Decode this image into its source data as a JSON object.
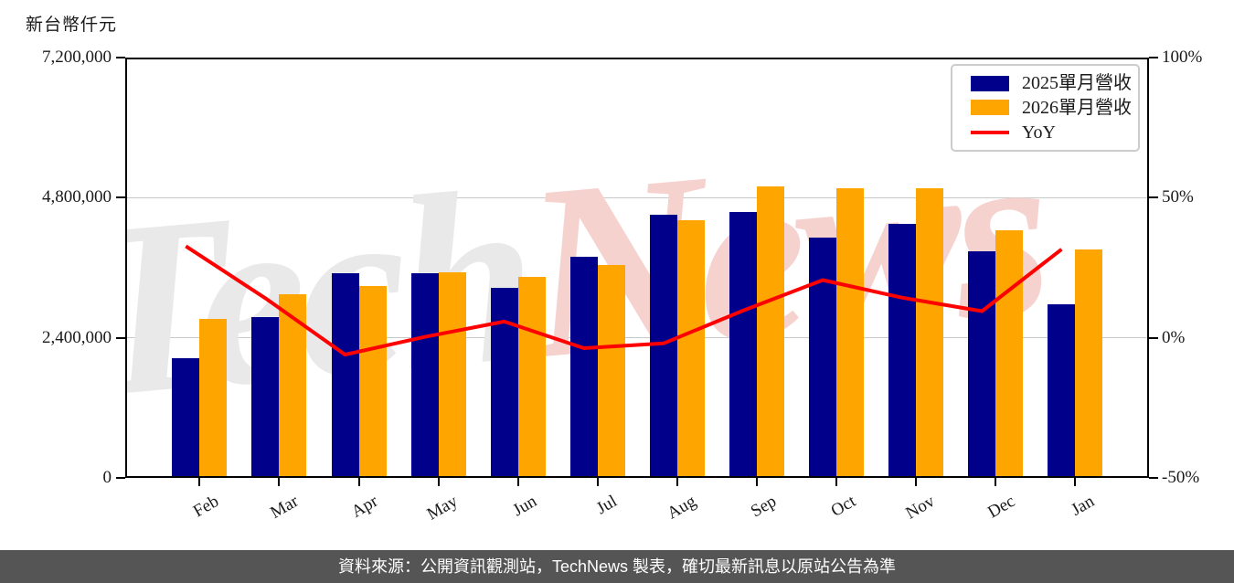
{
  "title": "新台幣仟元",
  "chart_data": {
    "type": "bar",
    "categories": [
      "Feb",
      "Mar",
      "Apr",
      "May",
      "Jun",
      "Jul",
      "Aug",
      "Sep",
      "Oct",
      "Nov",
      "Dec",
      "Jan"
    ],
    "series": [
      {
        "name": "2025單月營收",
        "color": "#00008B",
        "values": [
          2050000,
          2760000,
          3500000,
          3510000,
          3260000,
          3790000,
          4510000,
          4550000,
          4120000,
          4350000,
          3880000,
          2970000
        ]
      },
      {
        "name": "2026單月營收",
        "color": "#FFA500",
        "values": [
          2720000,
          3150000,
          3290000,
          3520000,
          3450000,
          3650000,
          4420000,
          4990000,
          4970000,
          4970000,
          4250000,
          3910000
        ]
      }
    ],
    "line_series": {
      "name": "YoY",
      "color": "#FF0000",
      "values_pct": [
        32.7,
        14.1,
        -6.0,
        0.3,
        5.8,
        -3.7,
        -2.0,
        9.7,
        20.6,
        14.3,
        9.5,
        31.6
      ]
    },
    "left_axis": {
      "label": "新台幣仟元",
      "tick_labels": [
        "7,200,000",
        "4,800,000",
        "2,400,000",
        "0"
      ],
      "min": 0,
      "max": 7200000
    },
    "right_axis": {
      "tick_labels": [
        "100%",
        "50%",
        "0%",
        "-50%"
      ],
      "min": -50,
      "max": 100
    },
    "legend_position": "upper right",
    "grid": "horizontal"
  },
  "watermark": {
    "gray_text": "Tech",
    "pink_text": "News"
  },
  "footer": {
    "text": "資料來源：公開資訊觀測站，TechNews 製表，確切最新訊息以原站公告為準"
  },
  "colors": {
    "bar_2025": "#00008B",
    "bar_2026": "#FFA500",
    "yoy_line": "#FF0000",
    "grid_line": "#C9C9C9",
    "axis": "#000000",
    "footer_bg": "#555555",
    "watermark_gray": "#E9E9E9",
    "watermark_pink": "#F6D2CF",
    "legend_border": "#CCCCCC"
  }
}
